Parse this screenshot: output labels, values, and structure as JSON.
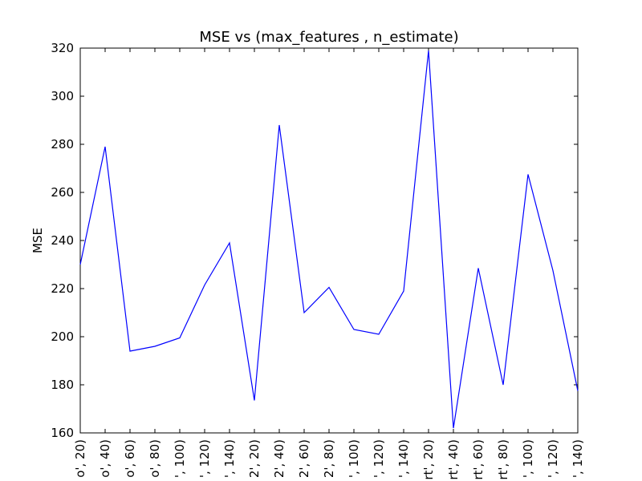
{
  "chart_data": {
    "type": "line",
    "title": "MSE vs (max_features , n_estimate)",
    "xlabel": "",
    "ylabel": "MSE",
    "ylim": [
      160,
      320
    ],
    "yticks": [
      160,
      180,
      200,
      220,
      240,
      260,
      280,
      300,
      320
    ],
    "grid": false,
    "line_color": "#0000ff",
    "categories": [
      "o', 20)",
      "o', 40)",
      "o', 60)",
      "o', 80)",
      "', 100)",
      "', 120)",
      "', 140)",
      "2', 20)",
      "2', 40)",
      "2', 60)",
      "2', 80)",
      "', 100)",
      "', 120)",
      "', 140)",
      "rt', 20)",
      "rt', 40)",
      "rt', 60)",
      "rt', 80)",
      "', 100)",
      "', 120)",
      "', 140)"
    ],
    "values": [
      230,
      279,
      194,
      196,
      199.5,
      221.5,
      239,
      173.5,
      288,
      210,
      220.5,
      203,
      201,
      219,
      319,
      162,
      228.5,
      180,
      267.5,
      227.5,
      177.5
    ]
  }
}
